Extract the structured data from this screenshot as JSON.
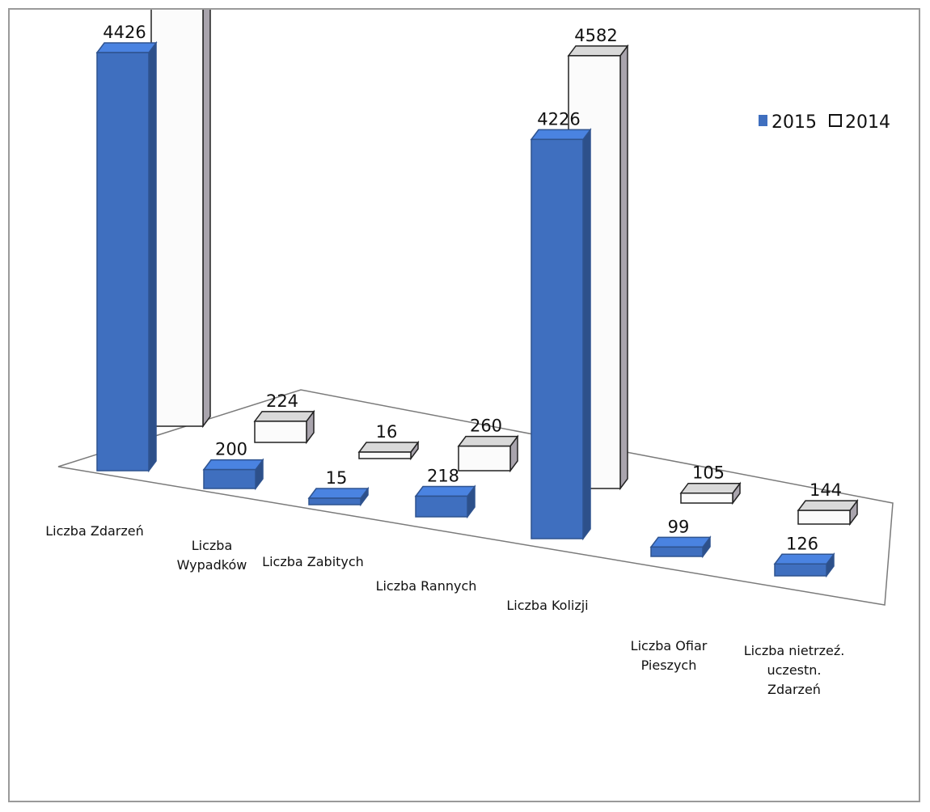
{
  "chart_data": {
    "type": "bar",
    "title": "",
    "xlabel": "",
    "ylabel": "",
    "categories": [
      [
        "Liczba Zdarzeń"
      ],
      [
        "Liczba",
        "Wypadków"
      ],
      [
        "Liczba Zabitych"
      ],
      [
        "Liczba Rannych"
      ],
      [
        "Liczba Kolizji"
      ],
      [
        "Liczba Ofiar",
        "Pieszych"
      ],
      [
        "Liczba nietrzeź.",
        "uczestn.",
        "Zdarzeń"
      ]
    ],
    "series": [
      {
        "name": "2015",
        "values": [
          4426,
          200,
          15,
          218,
          4226,
          99,
          126
        ],
        "color": "#3f6fbf"
      },
      {
        "name": "2014",
        "values": [
          4806,
          224,
          16,
          260,
          4582,
          105,
          144
        ],
        "color": "#f4f4f4"
      }
    ],
    "ylim": [
      0,
      4806
    ],
    "grid": false,
    "legend_position": "top-right"
  }
}
